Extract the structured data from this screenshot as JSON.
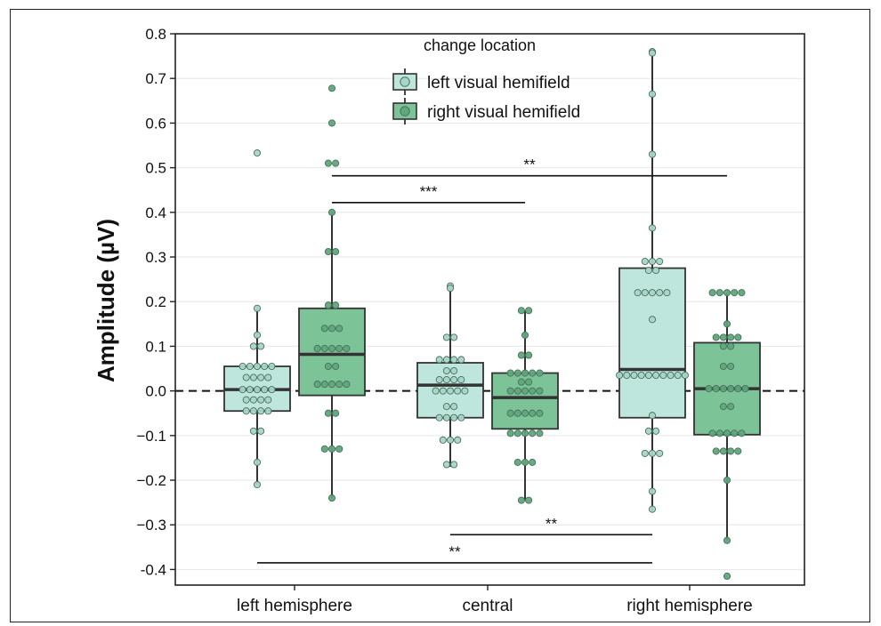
{
  "chart_data": {
    "type": "box",
    "ylabel": "Amplitude (µV)",
    "xlabel": "",
    "categories": [
      "left hemisphere",
      "central",
      "right hemisphere"
    ],
    "ylim": [
      -0.435,
      0.8
    ],
    "yticks": [
      -0.4,
      -0.3,
      -0.2,
      -0.1,
      0.0,
      0.1,
      0.2,
      0.3,
      0.4,
      0.5,
      0.6,
      0.7,
      0.8
    ],
    "ytick_labels": [
      "-0.4",
      "−0.3",
      "−0.2",
      "−0.1",
      "0.0",
      "0.1",
      "0.2",
      "0.3",
      "0.4",
      "0.5",
      "0.6",
      "0.7",
      "0.8"
    ],
    "grid": "horizontal",
    "reference_line": 0,
    "legend": {
      "title": "change location",
      "placement": "top-center",
      "entries": [
        "left visual hemifield",
        "right visual hemifield"
      ]
    },
    "colors": {
      "left visual hemifield": "#bfe6dc",
      "right visual hemifield": "#7cc397",
      "left_points": "#a6d6c8",
      "right_points": "#5ea879",
      "box_stroke": "#333333"
    },
    "series": [
      {
        "name": "left visual hemifield",
        "boxes": [
          {
            "category": "left hemisphere",
            "whisker_low": -0.21,
            "q1": -0.045,
            "median": 0.003,
            "q3": 0.055,
            "whisker_high": 0.185,
            "points": [
              0.533,
              0.185,
              0.125,
              0.1,
              0.1,
              0.055,
              0.055,
              0.055,
              0.055,
              0.055,
              0.03,
              0.03,
              0.03,
              0.03,
              0.003,
              0.003,
              0.003,
              0.003,
              0.003,
              -0.02,
              -0.02,
              -0.02,
              -0.02,
              -0.045,
              -0.045,
              -0.045,
              -0.045,
              -0.09,
              -0.09,
              -0.16,
              -0.21
            ]
          },
          {
            "category": "central",
            "whisker_low": -0.17,
            "q1": -0.06,
            "median": 0.013,
            "q3": 0.063,
            "whisker_high": 0.235,
            "points": [
              0.235,
              0.23,
              0.12,
              0.12,
              0.07,
              0.07,
              0.07,
              0.07,
              0.045,
              0.045,
              0.025,
              0.025,
              0.025,
              0.025,
              0.0,
              0.0,
              0.0,
              0.0,
              0.0,
              -0.035,
              -0.035,
              -0.06,
              -0.06,
              -0.06,
              -0.06,
              -0.11,
              -0.11,
              -0.11,
              -0.165,
              -0.165
            ]
          },
          {
            "category": "right hemisphere",
            "whisker_low": -0.27,
            "q1": -0.06,
            "median": 0.048,
            "q3": 0.275,
            "whisker_high": 0.76,
            "points": [
              0.76,
              0.757,
              0.665,
              0.53,
              0.365,
              0.29,
              0.29,
              0.29,
              0.27,
              0.27,
              0.22,
              0.22,
              0.22,
              0.22,
              0.22,
              0.16,
              0.035,
              0.035,
              0.035,
              0.035,
              0.035,
              0.035,
              0.035,
              0.035,
              0.035,
              0.035,
              -0.055,
              -0.09,
              -0.09,
              -0.14,
              -0.14,
              -0.14,
              -0.225,
              -0.265
            ]
          }
        ]
      },
      {
        "name": "right visual hemifield",
        "boxes": [
          {
            "category": "left hemisphere",
            "whisker_low": -0.24,
            "q1": -0.01,
            "median": 0.082,
            "q3": 0.185,
            "whisker_high": 0.4,
            "points": [
              0.678,
              0.6,
              0.51,
              0.51,
              0.4,
              0.312,
              0.312,
              0.192,
              0.192,
              0.14,
              0.14,
              0.14,
              0.095,
              0.095,
              0.095,
              0.095,
              0.095,
              0.055,
              0.055,
              0.015,
              0.015,
              0.015,
              0.015,
              0.015,
              -0.05,
              -0.05,
              -0.13,
              -0.13,
              -0.13,
              -0.24
            ]
          },
          {
            "category": "central",
            "whisker_low": -0.245,
            "q1": -0.085,
            "median": -0.015,
            "q3": 0.04,
            "whisker_high": 0.18,
            "points": [
              0.18,
              0.18,
              0.125,
              0.08,
              0.08,
              0.04,
              0.04,
              0.04,
              0.04,
              0.04,
              0.02,
              0.02,
              0.0,
              0.0,
              0.0,
              0.0,
              0.0,
              -0.05,
              -0.05,
              -0.05,
              -0.05,
              -0.05,
              -0.095,
              -0.095,
              -0.095,
              -0.095,
              -0.095,
              -0.16,
              -0.16,
              -0.16,
              -0.245,
              -0.245
            ]
          },
          {
            "category": "right hemisphere",
            "whisker_low": -0.335,
            "q1": -0.098,
            "median": 0.005,
            "q3": 0.108,
            "whisker_high": 0.22,
            "points": [
              0.22,
              0.22,
              0.22,
              0.22,
              0.22,
              0.15,
              0.12,
              0.12,
              0.12,
              0.12,
              0.1,
              0.1,
              0.055,
              0.055,
              0.005,
              0.005,
              0.005,
              0.005,
              0.005,
              0.005,
              -0.035,
              -0.035,
              -0.095,
              -0.095,
              -0.095,
              -0.095,
              -0.095,
              -0.135,
              -0.135,
              -0.135,
              -0.135,
              -0.2,
              -0.335,
              -0.415
            ]
          }
        ]
      }
    ],
    "annotations": [
      {
        "text": "**",
        "x_from": "left hemisphere/right visual hemifield",
        "x_to": "right hemisphere/right visual hemifield",
        "y": 0.482
      },
      {
        "text": "***",
        "x_from": "left hemisphere/right visual hemifield",
        "x_to": "central/right visual hemifield",
        "y": 0.422
      },
      {
        "text": "**",
        "x_from": "central/left visual hemifield",
        "x_to": "right hemisphere/left visual hemifield",
        "y": -0.322
      },
      {
        "text": "**",
        "x_from": "left hemisphere/left visual hemifield",
        "x_to": "right hemisphere/left visual hemifield",
        "y": -0.385
      }
    ]
  }
}
